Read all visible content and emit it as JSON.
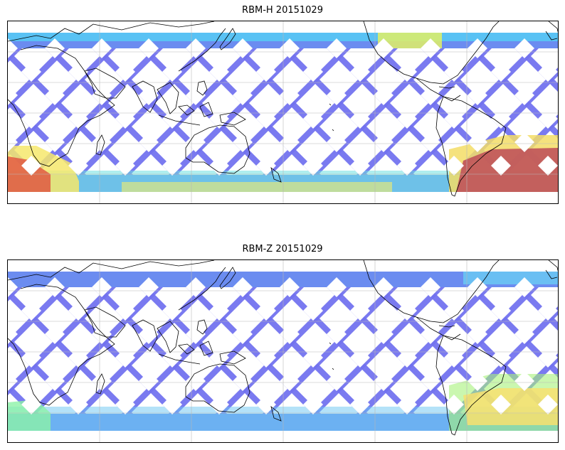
{
  "panels": [
    {
      "title": "RBM-H 20151029",
      "colormap": "jet",
      "alpha": 0.6,
      "swath_color": "#6b6cee",
      "hot_regions": [
        {
          "name": "south-atlantic-southern-ocean",
          "level": "high",
          "color": "#c0565a"
        },
        {
          "name": "south-indian-west",
          "level": "high",
          "color": "#e0503e"
        },
        {
          "name": "southern-band",
          "level": "mid",
          "color": "#f5ee6a"
        },
        {
          "name": "north-band-east",
          "level": "mid",
          "color": "#e2f064"
        }
      ]
    },
    {
      "title": "RBM-Z 20151029",
      "colormap": "jet",
      "alpha": 0.6,
      "swath_color": "#6b6cee",
      "hot_regions": [
        {
          "name": "south-atlantic",
          "level": "mid",
          "color": "#f8e070"
        },
        {
          "name": "south-indian-west",
          "level": "low-mid",
          "color": "#8cf2a8"
        }
      ]
    }
  ],
  "map": {
    "projection": "PlateCarree",
    "gridlines": true,
    "coastlines": true
  }
}
